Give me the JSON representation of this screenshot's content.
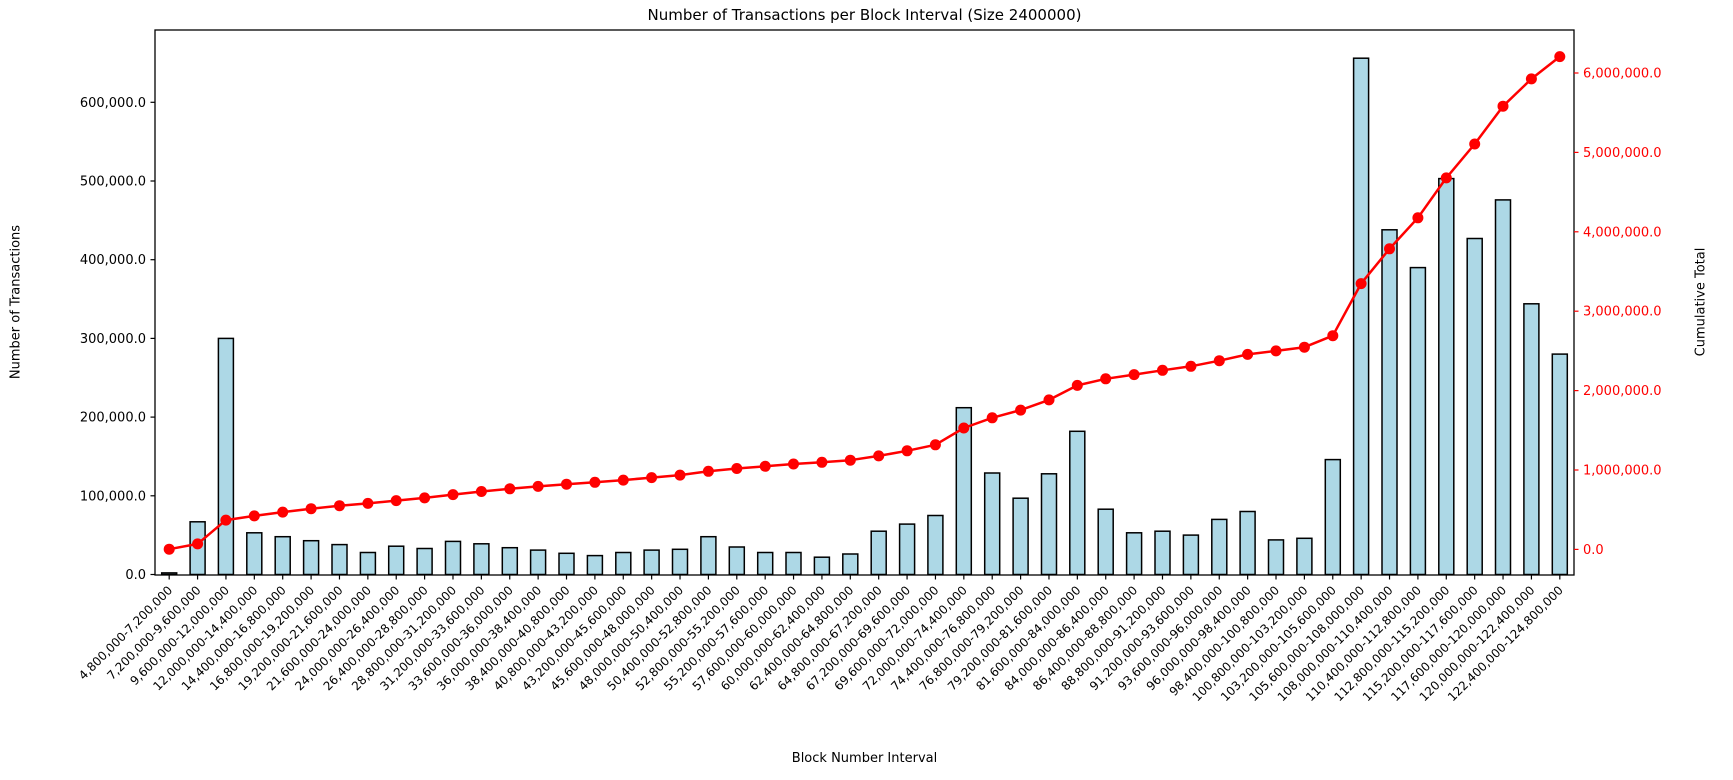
{
  "chart_data": {
    "type": "bar",
    "title": "Number of Transactions per Block Interval (Size 2400000)",
    "xlabel": "Block Number Interval",
    "ylabel": "Number of Transactions",
    "ylabel_right": "Cumulative Total",
    "grid": false,
    "legend": null,
    "colors": {
      "bar_fill": "#add8e6",
      "bar_edge": "#000000",
      "line": "#ff0000",
      "text": "#000000",
      "background": "#ffffff"
    },
    "categories": [
      "4,800,000-7,200,000",
      "7,200,000-9,600,000",
      "9,600,000-12,000,000",
      "12,000,000-14,400,000",
      "14,400,000-16,800,000",
      "16,800,000-19,200,000",
      "19,200,000-21,600,000",
      "21,600,000-24,000,000",
      "24,000,000-26,400,000",
      "26,400,000-28,800,000",
      "28,800,000-31,200,000",
      "31,200,000-33,600,000",
      "33,600,000-36,000,000",
      "36,000,000-38,400,000",
      "38,400,000-40,800,000",
      "40,800,000-43,200,000",
      "43,200,000-45,600,000",
      "45,600,000-48,000,000",
      "48,000,000-50,400,000",
      "50,400,000-52,800,000",
      "52,800,000-55,200,000",
      "55,200,000-57,600,000",
      "57,600,000-60,000,000",
      "60,000,000-62,400,000",
      "62,400,000-64,800,000",
      "64,800,000-67,200,000",
      "67,200,000-69,600,000",
      "69,600,000-72,000,000",
      "72,000,000-74,400,000",
      "74,400,000-76,800,000",
      "76,800,000-79,200,000",
      "79,200,000-81,600,000",
      "81,600,000-84,000,000",
      "84,000,000-86,400,000",
      "86,400,000-88,800,000",
      "88,800,000-91,200,000",
      "91,200,000-93,600,000",
      "93,600,000-96,000,000",
      "96,000,000-98,400,000",
      "98,400,000-100,800,000",
      "100,800,000-103,200,000",
      "103,200,000-105,600,000",
      "105,600,000-108,000,000",
      "108,000,000-110,400,000",
      "110,400,000-112,800,000",
      "112,800,000-115,200,000",
      "115,200,000-117,600,000",
      "117,600,000-120,000,000",
      "120,000,000-122,400,000",
      "122,400,000-124,800,000"
    ],
    "series": [
      {
        "name": "Number of Transactions",
        "type": "bar",
        "axis": "left",
        "values": [
          2000,
          67000,
          300000,
          53000,
          48000,
          43000,
          38000,
          28000,
          36000,
          33000,
          42000,
          39000,
          34000,
          31000,
          27000,
          24000,
          28000,
          31000,
          32000,
          48000,
          35000,
          28000,
          28000,
          22000,
          26000,
          55000,
          64000,
          75000,
          212000,
          129000,
          97000,
          128000,
          182000,
          83000,
          53000,
          55000,
          50000,
          70000,
          80000,
          44000,
          46000,
          146000,
          656000,
          438000,
          390000,
          503000,
          427000,
          476000,
          344000,
          280000
        ]
      },
      {
        "name": "Cumulative Total",
        "type": "line",
        "axis": "right",
        "derived": "cumulative_sum_of_bar_values",
        "final_total": 6206000
      }
    ],
    "left_axis": {
      "tick_values": [
        0,
        100000,
        200000,
        300000,
        400000,
        500000,
        600000
      ],
      "tick_labels": [
        "0.0",
        "100,000.0",
        "200,000.0",
        "300,000.0",
        "400,000.0",
        "500,000.0",
        "600,000.0"
      ],
      "range": [
        0,
        690000
      ]
    },
    "right_axis": {
      "tick_values": [
        0,
        1000000,
        2000000,
        3000000,
        4000000,
        5000000,
        6000000
      ],
      "tick_labels": [
        "0.0",
        "1,000,000.0",
        "2,000,000.0",
        "3,000,000.0",
        "4,000,000.0",
        "5,000,000.0",
        "6,000,000.0"
      ],
      "range": [
        -343000,
        6660000
      ],
      "color": "#ff0000"
    }
  }
}
